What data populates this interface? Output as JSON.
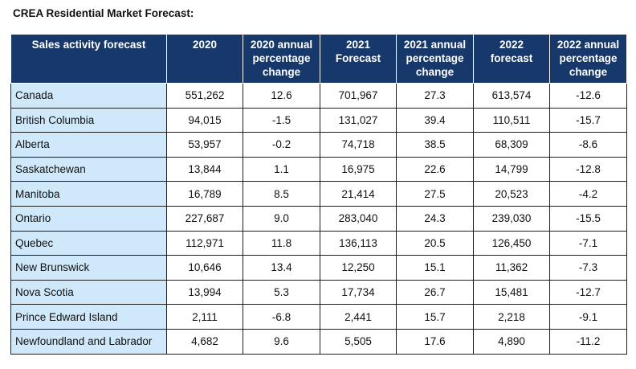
{
  "title": "CREA Residential Market Forecast:",
  "table": {
    "headers": [
      "Sales activity forecast",
      "2020",
      "2020 annual\npercentage\nchange",
      "2021\nForecast",
      "2021 annual\npercentage\nchange",
      "2022\nforecast",
      "2022 annual\npercentage\nchange"
    ],
    "rows": [
      [
        "Canada",
        "551,262",
        "12.6",
        "701,967",
        "27.3",
        "613,574",
        "-12.6"
      ],
      [
        "British Columbia",
        "94,015",
        "-1.5",
        "131,027",
        "39.4",
        "110,511",
        "-15.7"
      ],
      [
        "Alberta",
        "53,957",
        "-0.2",
        "74,718",
        "38.5",
        "68,309",
        "-8.6"
      ],
      [
        "Saskatchewan",
        "13,844",
        "1.1",
        "16,975",
        "22.6",
        "14,799",
        "-12.8"
      ],
      [
        "Manitoba",
        "16,789",
        "8.5",
        "21,414",
        "27.5",
        "20,523",
        "-4.2"
      ],
      [
        "Ontario",
        "227,687",
        "9.0",
        "283,040",
        "24.3",
        "239,030",
        "-15.5"
      ],
      [
        "Quebec",
        "112,971",
        "11.8",
        "136,113",
        "20.5",
        "126,450",
        "-7.1"
      ],
      [
        "New Brunswick",
        "10,646",
        "13.4",
        "12,250",
        "15.1",
        "11,362",
        "-7.3"
      ],
      [
        "Nova Scotia",
        "13,994",
        "5.3",
        "17,734",
        "26.7",
        "15,481",
        "-12.7"
      ],
      [
        "Prince Edward Island",
        "2,111",
        "-6.8",
        "2,441",
        "15.7",
        "2,218",
        "-9.1"
      ],
      [
        "Newfoundland and Labrador",
        "4,682",
        "9.6",
        "5,505",
        "17.6",
        "4,890",
        "-11.2"
      ]
    ]
  },
  "colors": {
    "header_bg": "#17386b",
    "header_text": "#ffffff",
    "region_bg": "#cfe9fb"
  }
}
